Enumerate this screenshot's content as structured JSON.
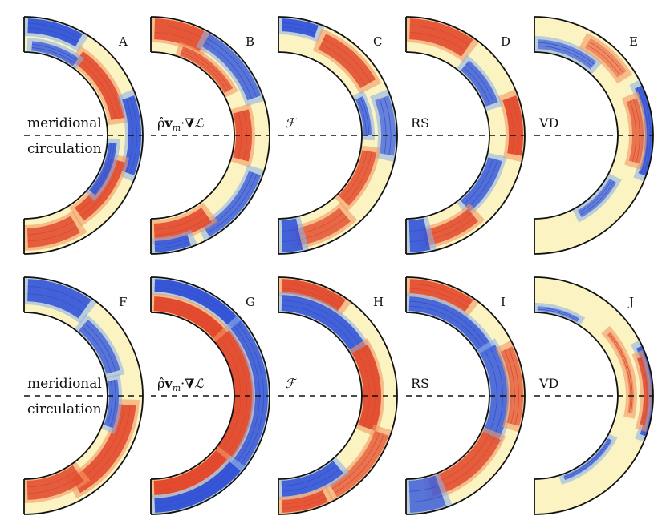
{
  "figure": {
    "rows": [
      {
        "panels": [
          {
            "letter": "A",
            "term_text": "meridional",
            "term_text2": "circulation",
            "scheme": 0
          },
          {
            "letter": "B",
            "term_pre": "ρ̂",
            "term_bold": "v",
            "term_sub": "m",
            "term_mid": "·",
            "term_bold2": "∇",
            "term_post": "ℒ",
            "scheme": 1
          },
          {
            "letter": "C",
            "term_script": "ℱ",
            "scheme": 2
          },
          {
            "letter": "D",
            "term_text": "RS",
            "scheme": 3
          },
          {
            "letter": "E",
            "term_text": "VD",
            "scheme": 4
          }
        ]
      },
      {
        "panels": [
          {
            "letter": "F",
            "term_text": "meridional",
            "term_text2": "circulation",
            "scheme": 5
          },
          {
            "letter": "G",
            "term_pre": "ρ̂",
            "term_bold": "v",
            "term_sub": "m",
            "term_mid": "·",
            "term_bold2": "∇",
            "term_post": "ℒ",
            "scheme": 6
          },
          {
            "letter": "H",
            "term_script": "ℱ",
            "scheme": 7
          },
          {
            "letter": "I",
            "term_text": "RS",
            "scheme": 8
          },
          {
            "letter": "J",
            "term_text": "VD",
            "scheme": 9
          }
        ]
      }
    ],
    "colors": {
      "positive": "#e0452a",
      "positive_light": "#f39a62",
      "negative": "#2f4fd6",
      "negative_light": "#8fb4e8",
      "neutral": "#fbf3c2",
      "outline": "#111111"
    }
  }
}
